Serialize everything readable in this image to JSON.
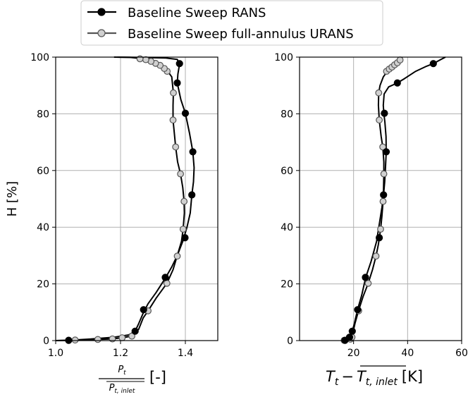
{
  "legend": {
    "entries": [
      {
        "label": "Baseline Sweep RANS",
        "marker_fill": "#000000",
        "marker_edge": "#000000",
        "line_color": "#000000"
      },
      {
        "label": "Baseline Sweep full-annulus URANS",
        "marker_fill": "#d0d0d0",
        "marker_edge": "#555555",
        "line_color": "#000000"
      }
    ]
  },
  "chart_data": [
    {
      "type": "line",
      "ylabel": "H [%]",
      "xlabel": {
        "numerator": "P",
        "numerator_sub": "t",
        "denominator": "P",
        "denominator_sub": "t, inlet",
        "unit": "[-]"
      },
      "xlim": [
        1.0,
        1.5
      ],
      "ylim": [
        0,
        100
      ],
      "xticks": [
        "1.0",
        "1.2",
        "1.4"
      ],
      "xtick_values": [
        1.0,
        1.2,
        1.4
      ],
      "yticks": [
        "0",
        "20",
        "40",
        "60",
        "80",
        "100"
      ],
      "ytick_values": [
        0,
        20,
        40,
        60,
        80,
        100
      ],
      "grid": true,
      "series": [
        {
          "name": "Baseline Sweep RANS",
          "curve": [
            [
              1.0,
              0
            ],
            [
              1.04,
              0.1
            ],
            [
              1.1,
              0.5
            ],
            [
              1.18,
              1.2
            ],
            [
              1.225,
              2.0
            ],
            [
              1.245,
              3.3
            ],
            [
              1.256,
              6
            ],
            [
              1.271,
              10
            ],
            [
              1.285,
              13
            ],
            [
              1.31,
              17
            ],
            [
              1.338,
              22
            ],
            [
              1.358,
              26
            ],
            [
              1.375,
              30
            ],
            [
              1.392,
              35
            ],
            [
              1.405,
              40
            ],
            [
              1.415,
              45
            ],
            [
              1.42,
              51.4
            ],
            [
              1.425,
              56
            ],
            [
              1.427,
              61
            ],
            [
              1.423,
              66.6
            ],
            [
              1.413,
              73
            ],
            [
              1.4,
              80.2
            ],
            [
              1.386,
              85
            ],
            [
              1.375,
              90.9
            ],
            [
              1.377,
              94
            ],
            [
              1.382,
              97.5
            ],
            [
              1.375,
              99.2
            ],
            [
              1.34,
              99.7
            ],
            [
              1.25,
              99.9
            ],
            [
              1.19,
              100
            ]
          ],
          "points": [
            [
              1.04,
              0.1
            ],
            [
              1.245,
              3.3
            ],
            [
              1.271,
              10.9
            ],
            [
              1.338,
              22.3
            ],
            [
              1.399,
              36.3
            ],
            [
              1.42,
              51.4
            ],
            [
              1.423,
              66.6
            ],
            [
              1.4,
              80.2
            ],
            [
              1.375,
              90.9
            ],
            [
              1.382,
              97.7
            ]
          ]
        },
        {
          "name": "Baseline Sweep full-annulus URANS",
          "curve": [
            [
              1.0,
              0
            ],
            [
              1.06,
              0.2
            ],
            [
              1.13,
              0.4
            ],
            [
              1.175,
              0.6
            ],
            [
              1.205,
              1.0
            ],
            [
              1.235,
              1.6
            ],
            [
              1.256,
              4
            ],
            [
              1.27,
              8
            ],
            [
              1.285,
              10.5
            ],
            [
              1.31,
              15
            ],
            [
              1.343,
              20.2
            ],
            [
              1.362,
              25
            ],
            [
              1.375,
              30
            ],
            [
              1.388,
              35
            ],
            [
              1.393,
              39.3
            ],
            [
              1.397,
              45
            ],
            [
              1.396,
              49.1
            ],
            [
              1.392,
              54
            ],
            [
              1.385,
              58.8
            ],
            [
              1.376,
              63
            ],
            [
              1.37,
              68.3
            ],
            [
              1.366,
              73
            ],
            [
              1.362,
              77.8
            ],
            [
              1.362,
              83
            ],
            [
              1.363,
              87.4
            ],
            [
              1.358,
              93
            ],
            [
              1.344,
              95.3
            ],
            [
              1.325,
              97
            ],
            [
              1.3,
              98.4
            ],
            [
              1.275,
              99.2
            ],
            [
              1.255,
              99.6
            ],
            [
              1.23,
              99.9
            ],
            [
              1.18,
              100
            ]
          ],
          "points": [
            [
              1.06,
              0.2
            ],
            [
              1.13,
              0.4
            ],
            [
              1.175,
              0.6
            ],
            [
              1.205,
              1.0
            ],
            [
              1.235,
              1.6
            ],
            [
              1.285,
              10.5
            ],
            [
              1.343,
              20.2
            ],
            [
              1.375,
              29.8
            ],
            [
              1.393,
              39.3
            ],
            [
              1.396,
              49.1
            ],
            [
              1.385,
              58.8
            ],
            [
              1.37,
              68.3
            ],
            [
              1.362,
              77.8
            ],
            [
              1.363,
              87.4
            ],
            [
              1.344,
              95.0
            ],
            [
              1.335,
              96.0
            ],
            [
              1.322,
              97.1
            ],
            [
              1.308,
              97.8
            ],
            [
              1.294,
              98.5
            ],
            [
              1.278,
              99.1
            ],
            [
              1.26,
              99.4
            ]
          ]
        }
      ]
    },
    {
      "type": "line",
      "ylabel": "",
      "xlabel": {
        "left": "T",
        "left_sub": "t",
        "minus": "−",
        "right": "T",
        "right_sub": "t, inlet",
        "unit": "[K]"
      },
      "xlim": [
        0,
        60
      ],
      "ylim": [
        0,
        100
      ],
      "xticks": [
        "20",
        "40",
        "60"
      ],
      "xtick_values": [
        20,
        40,
        60
      ],
      "yticks": [
        "0",
        "20",
        "40",
        "60",
        "80",
        "100"
      ],
      "ytick_values": [
        0,
        20,
        40,
        60,
        80,
        100
      ],
      "grid": true,
      "series": [
        {
          "name": "Baseline Sweep RANS",
          "curve": [
            [
              16.5,
              0
            ],
            [
              17,
              0.2
            ],
            [
              17.8,
              0.6
            ],
            [
              18.7,
              1.6
            ],
            [
              19.5,
              3.3
            ],
            [
              20.3,
              6
            ],
            [
              21.5,
              11
            ],
            [
              23,
              16
            ],
            [
              24.5,
              22.3
            ],
            [
              26.5,
              28
            ],
            [
              28.5,
              35
            ],
            [
              29.5,
              41
            ],
            [
              30.5,
              47
            ],
            [
              31.1,
              51.4
            ],
            [
              31.5,
              56
            ],
            [
              31.8,
              61
            ],
            [
              32.1,
              66.6
            ],
            [
              32.0,
              72
            ],
            [
              31.6,
              77
            ],
            [
              31.2,
              80.2
            ],
            [
              31.0,
              83
            ],
            [
              31.3,
              87
            ],
            [
              33,
              89.5
            ],
            [
              36.2,
              90.9
            ],
            [
              39,
              92.5
            ],
            [
              43,
              95
            ],
            [
              47,
              96.8
            ],
            [
              49.5,
              97.7
            ],
            [
              52,
              99
            ],
            [
              54,
              100
            ]
          ],
          "points": [
            [
              16.8,
              0.1
            ],
            [
              18.5,
              1.2
            ],
            [
              19.5,
              3.3
            ],
            [
              21.5,
              10.9
            ],
            [
              24.4,
              22.3
            ],
            [
              29.5,
              36.3
            ],
            [
              31.1,
              51.4
            ],
            [
              32.1,
              66.6
            ],
            [
              31.4,
              80.2
            ],
            [
              36.2,
              90.9
            ],
            [
              49.5,
              97.7
            ]
          ]
        },
        {
          "name": "Baseline Sweep full-annulus URANS",
          "curve": [
            [
              15.5,
              0
            ],
            [
              16,
              0.1
            ],
            [
              17.5,
              0.3
            ],
            [
              18.6,
              0.6
            ],
            [
              19.2,
              1.0
            ],
            [
              19.8,
              3
            ],
            [
              20.5,
              6
            ],
            [
              21.8,
              10.5
            ],
            [
              23.5,
              15.5
            ],
            [
              25.4,
              20.2
            ],
            [
              27,
              25
            ],
            [
              28.3,
              29.8
            ],
            [
              29.2,
              34
            ],
            [
              30.0,
              39.3
            ],
            [
              30.5,
              44
            ],
            [
              30.9,
              49.1
            ],
            [
              31.1,
              54
            ],
            [
              31.2,
              58.8
            ],
            [
              31.2,
              63
            ],
            [
              30.8,
              68.3
            ],
            [
              30.2,
              72
            ],
            [
              29.5,
              77.8
            ],
            [
              29.2,
              83
            ],
            [
              29.3,
              87.4
            ],
            [
              29.8,
              90
            ],
            [
              31,
              93
            ],
            [
              32.5,
              95
            ],
            [
              34,
              96.5
            ],
            [
              35.5,
              97.8
            ],
            [
              37,
              99
            ],
            [
              38,
              100
            ]
          ],
          "points": [
            [
              16.5,
              0.1
            ],
            [
              18.8,
              0.5
            ],
            [
              19.4,
              1.2
            ],
            [
              21.9,
              10.5
            ],
            [
              25.4,
              20.2
            ],
            [
              28.3,
              29.8
            ],
            [
              30.0,
              39.3
            ],
            [
              30.9,
              49.1
            ],
            [
              31.2,
              58.8
            ],
            [
              30.8,
              68.3
            ],
            [
              29.5,
              77.8
            ],
            [
              29.3,
              87.4
            ],
            [
              32.2,
              95.0
            ],
            [
              33.2,
              95.8
            ],
            [
              34.2,
              96.5
            ],
            [
              35.2,
              97.3
            ],
            [
              36.2,
              98.0
            ],
            [
              37.2,
              99.0
            ]
          ]
        }
      ]
    }
  ]
}
